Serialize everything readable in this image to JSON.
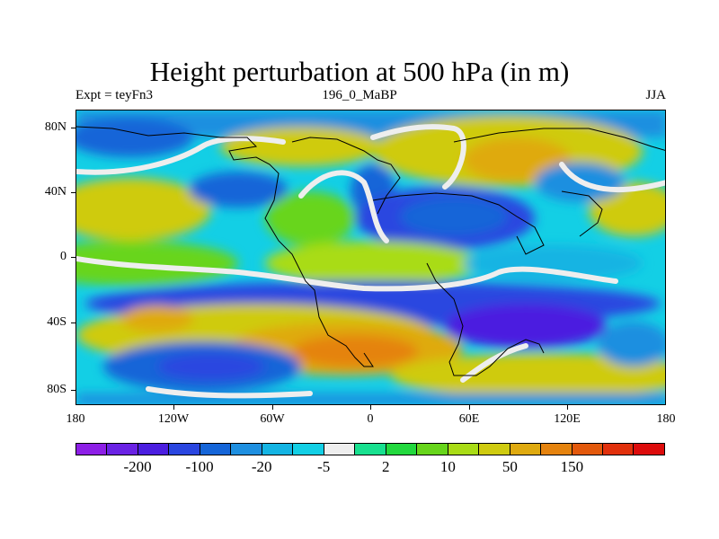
{
  "title": "Height perturbation at 500 hPa (in m)",
  "subtitle_left": "Expt = teyFn3",
  "subtitle_center": "196_0_MaBP",
  "subtitle_right": "JJA",
  "map": {
    "projection": "cylindrical equidistant",
    "lon_range": [
      -180,
      180
    ],
    "lat_range": [
      -90,
      90
    ],
    "lat_ticks": [
      {
        "value": 80,
        "label": "80N"
      },
      {
        "value": 40,
        "label": "40N"
      },
      {
        "value": 0,
        "label": "0"
      },
      {
        "value": -40,
        "label": "40S"
      },
      {
        "value": -80,
        "label": "80S"
      }
    ],
    "lon_ticks": [
      {
        "value": -180,
        "label": "180"
      },
      {
        "value": -120,
        "label": "120W"
      },
      {
        "value": -60,
        "label": "60W"
      },
      {
        "value": 0,
        "label": "0"
      },
      {
        "value": 60,
        "label": "60E"
      },
      {
        "value": 120,
        "label": "120E"
      },
      {
        "value": 180,
        "label": "180"
      }
    ]
  },
  "colorbar": {
    "colors": [
      "#8d1fe6",
      "#6a22e4",
      "#4b1ee0",
      "#2a46e0",
      "#1565d8",
      "#1e8fe0",
      "#14b4e3",
      "#13cfe5",
      "#eeeeee",
      "#18e08f",
      "#22d83e",
      "#67d51b",
      "#a9dc16",
      "#cfcb10",
      "#dfaa10",
      "#e5830e",
      "#e3590c",
      "#e1300c",
      "#dd0c0c"
    ],
    "labels": [
      {
        "after_box": 2,
        "text": "-200"
      },
      {
        "after_box": 4,
        "text": "-100"
      },
      {
        "after_box": 6,
        "text": "-20"
      },
      {
        "after_box": 8,
        "text": "-5"
      },
      {
        "after_box": 10,
        "text": "2"
      },
      {
        "after_box": 12,
        "text": "10"
      },
      {
        "after_box": 14,
        "text": "50"
      },
      {
        "after_box": 16,
        "text": "150"
      }
    ]
  }
}
